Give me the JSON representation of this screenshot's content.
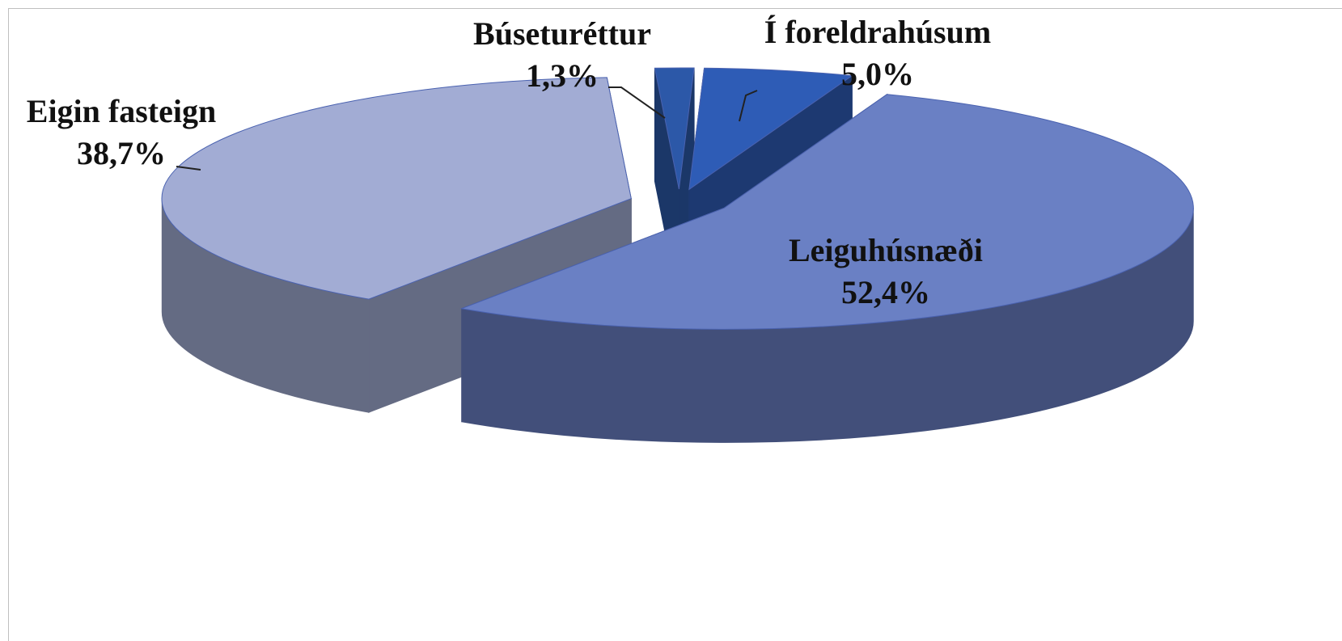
{
  "chart_data": {
    "type": "pie3d",
    "categories": [
      "Eigin fasteign",
      "Búseturéttur",
      "Í foreldrahúsum",
      "Leiguhúsnæði"
    ],
    "values": [
      38.7,
      1.3,
      5.0,
      52.4
    ],
    "value_labels": [
      "38,7%",
      "1,3%",
      "5,0%",
      "52,4%"
    ],
    "colors": [
      "#a2acd4",
      "#2c58a8",
      "#2e5cb6",
      "#6a80c4"
    ]
  }
}
